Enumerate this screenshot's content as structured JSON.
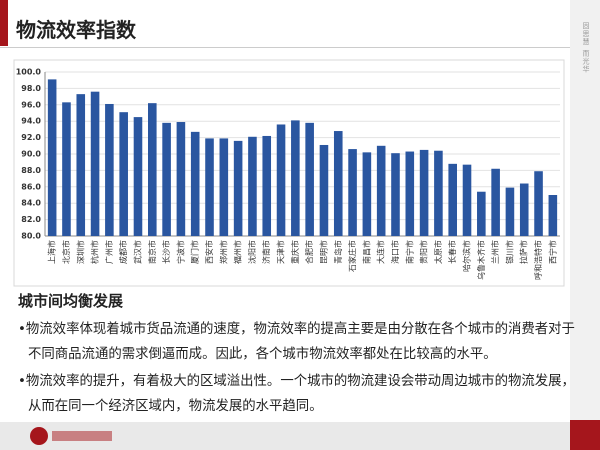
{
  "header": {
    "title": "物流效率指数"
  },
  "sidebar": "固思慧 而光华",
  "chart_data": {
    "type": "bar",
    "categories": [
      "上海市",
      "北京市",
      "深圳市",
      "杭州市",
      "广州市",
      "成都市",
      "武汉市",
      "南京市",
      "长沙市",
      "宁波市",
      "厦门市",
      "西安市",
      "郑州市",
      "福州市",
      "沈阳市",
      "济南市",
      "天津市",
      "重庆市",
      "合肥市",
      "昆明市",
      "青岛市",
      "石家庄市",
      "南昌市",
      "大连市",
      "海口市",
      "南宁市",
      "贵阳市",
      "太原市",
      "长春市",
      "哈尔滨市",
      "乌鲁木齐市",
      "兰州市",
      "银川市",
      "拉萨市",
      "呼和浩特市",
      "西宁市"
    ],
    "values": [
      99.1,
      96.3,
      97.3,
      97.6,
      96.1,
      95.1,
      94.5,
      96.2,
      93.8,
      93.9,
      92.7,
      91.9,
      91.9,
      91.6,
      92.1,
      92.2,
      93.6,
      94.1,
      93.8,
      91.1,
      92.8,
      90.6,
      90.2,
      91.0,
      90.1,
      90.3,
      90.5,
      90.4,
      88.8,
      88.7,
      85.4,
      88.2,
      85.9,
      86.4,
      87.9,
      85.0
    ],
    "color": "#2a56a0",
    "ylim": [
      80,
      100
    ],
    "yticks": [
      {
        "value": 80,
        "label": "80.0"
      },
      {
        "value": 82,
        "label": "82.0"
      },
      {
        "value": 84,
        "label": "84.0"
      },
      {
        "value": 86,
        "label": "86.0"
      },
      {
        "value": 88,
        "label": "88.0"
      },
      {
        "value": 90,
        "label": "90.0"
      },
      {
        "value": 92,
        "label": "92.0"
      },
      {
        "value": 94,
        "label": "94.0"
      },
      {
        "value": 96,
        "label": "96.0"
      },
      {
        "value": 98,
        "label": "98.0"
      },
      {
        "value": 100,
        "label": "100.0"
      }
    ],
    "grid": true
  },
  "section": {
    "heading": "城市间均衡发展",
    "bullets": [
      "•物流效率体现着城市货品流通的速度，物流效率的提高主要是由分散在各个城市的消费者对于不同商品流通的需求倒逼而成。因此，各个城市物流效率都处在比较高的水平。",
      "•物流效率的提升，有着极大的区域溢出性。一个城市的物流建设会带动周边城市的物流发展，从而在同一个经济区域内，物流发展的水平趋同。"
    ]
  }
}
